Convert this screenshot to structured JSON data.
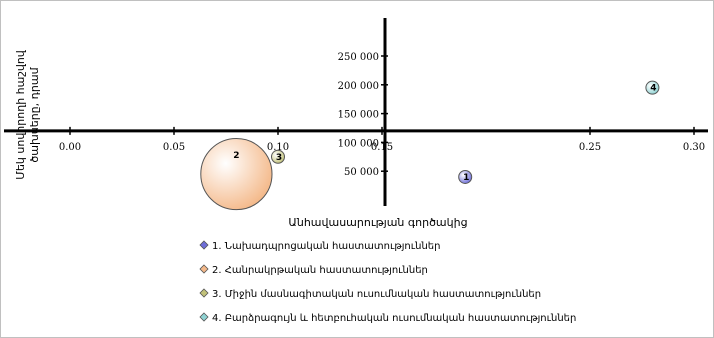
{
  "chart_data": {
    "type": "bubble",
    "xlabel": "Անհավասարության գործակից",
    "ylabel_lines": [
      "Մեկ սովորողի հաշվով",
      "ծախսերը, դրամ"
    ],
    "xlim": [
      0,
      0.3
    ],
    "ylim": [
      0,
      250000
    ],
    "x_ticks": [
      "0.00",
      "0.05",
      "0.10",
      "0.15",
      "0.25",
      "0.30"
    ],
    "x_tick_values": [
      0,
      0.05,
      0.1,
      0.15,
      0.25,
      0.3
    ],
    "y_ticks": [
      "50 000",
      "100 000",
      "150 000",
      "200 000",
      "250 000"
    ],
    "y_tick_values": [
      50000,
      100000,
      150000,
      200000,
      250000
    ],
    "grid": false,
    "series": [
      {
        "name": "1. Նախադպրոցական հաստատություններ",
        "x": 0.19,
        "y": 40000,
        "size": 1,
        "label": "1",
        "color": "#6d6dd8"
      },
      {
        "name": "2. Հանրակրթական հաստատություններ",
        "x": 0.08,
        "y": 45000,
        "size": 30,
        "label": "2",
        "color": "#f4b98a"
      },
      {
        "name": "3. Միջին մասնագիտական ուսումնական հաստատություններ",
        "x": 0.1,
        "y": 75000,
        "size": 1,
        "label": "3",
        "color": "#c2c27a"
      },
      {
        "name": "4. Բարձրագույն և հետբուհական ուսումնական հաստատություններ",
        "x": 0.28,
        "y": 195000,
        "size": 1,
        "label": "4",
        "color": "#8fd3d3"
      }
    ]
  }
}
